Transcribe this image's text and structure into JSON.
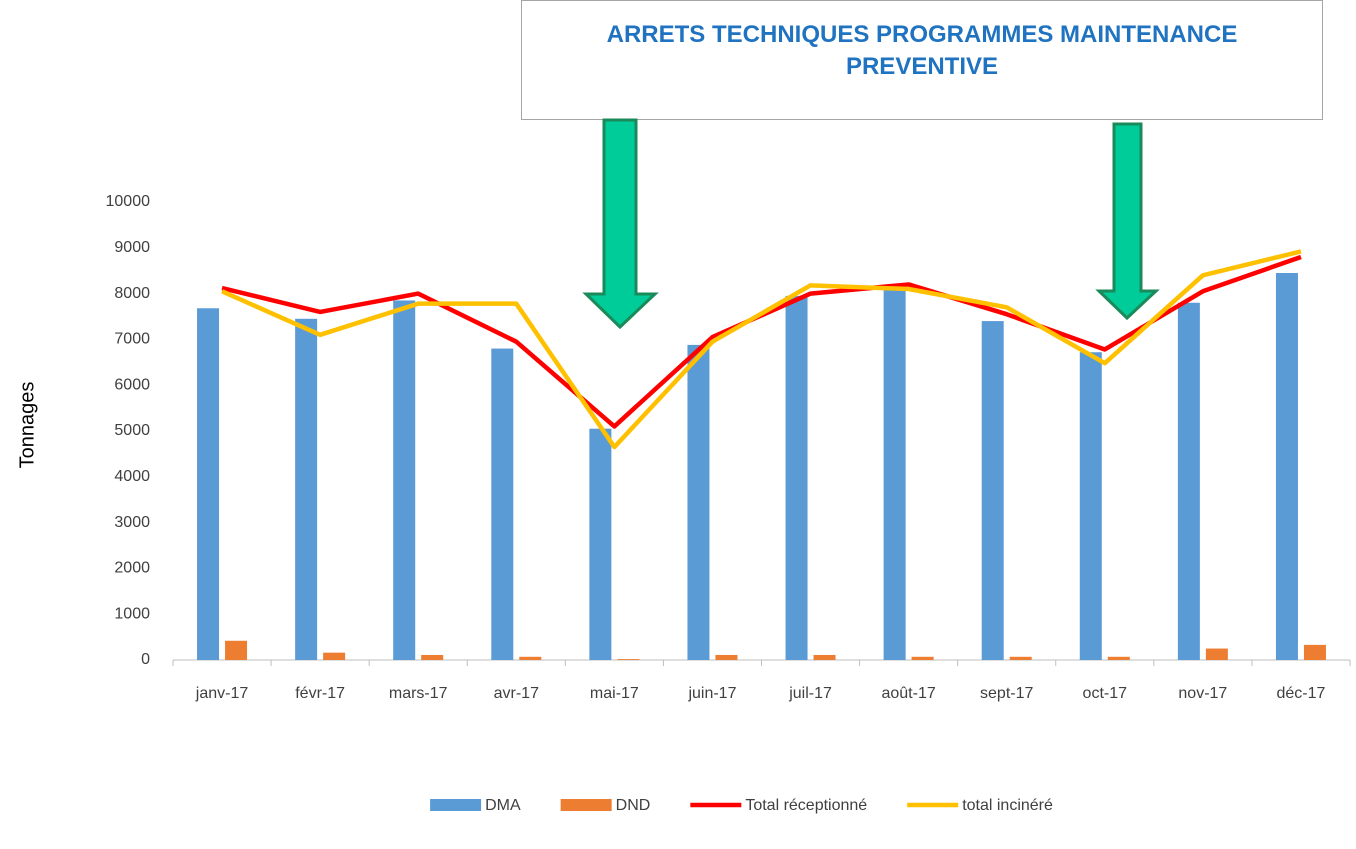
{
  "chart_data": {
    "type": "bar",
    "annotation": "ARRETS TECHNIQUES PROGRAMMES MAINTENANCE PREVENTIVE",
    "y_axis_label": "Tonnages",
    "categories": [
      "janv-17",
      "févr-17",
      "mars-17",
      "avr-17",
      "mai-17",
      "juin-17",
      "juil-17",
      "août-17",
      "sept-17",
      "oct-17",
      "nov-17",
      "déc-17"
    ],
    "series": [
      {
        "name": "DMA",
        "type": "bar",
        "color": "#5b9bd5",
        "values": [
          7680,
          7450,
          7850,
          6800,
          5050,
          6880,
          7950,
          8100,
          7400,
          6720,
          7800,
          8450
        ]
      },
      {
        "name": "DND",
        "type": "bar",
        "color": "#ed7d31",
        "values": [
          420,
          160,
          110,
          70,
          20,
          110,
          110,
          70,
          70,
          70,
          250,
          330
        ]
      },
      {
        "name": "Total réceptionné",
        "type": "line",
        "color": "#ff0000",
        "values": [
          8120,
          7600,
          8000,
          6950,
          5100,
          7050,
          8000,
          8200,
          7550,
          6780,
          8050,
          8800
        ]
      },
      {
        "name": "total incinéré",
        "type": "line",
        "color": "#ffc000",
        "values": [
          8050,
          7100,
          7780,
          7780,
          4650,
          6950,
          8180,
          8100,
          7700,
          6480,
          8400,
          8920
        ]
      }
    ],
    "ylim": [
      0,
      10000
    ],
    "yticks": [
      0,
      1000,
      2000,
      3000,
      4000,
      5000,
      6000,
      7000,
      8000,
      9000,
      10000
    ],
    "grid": false,
    "legend": "bottom"
  }
}
